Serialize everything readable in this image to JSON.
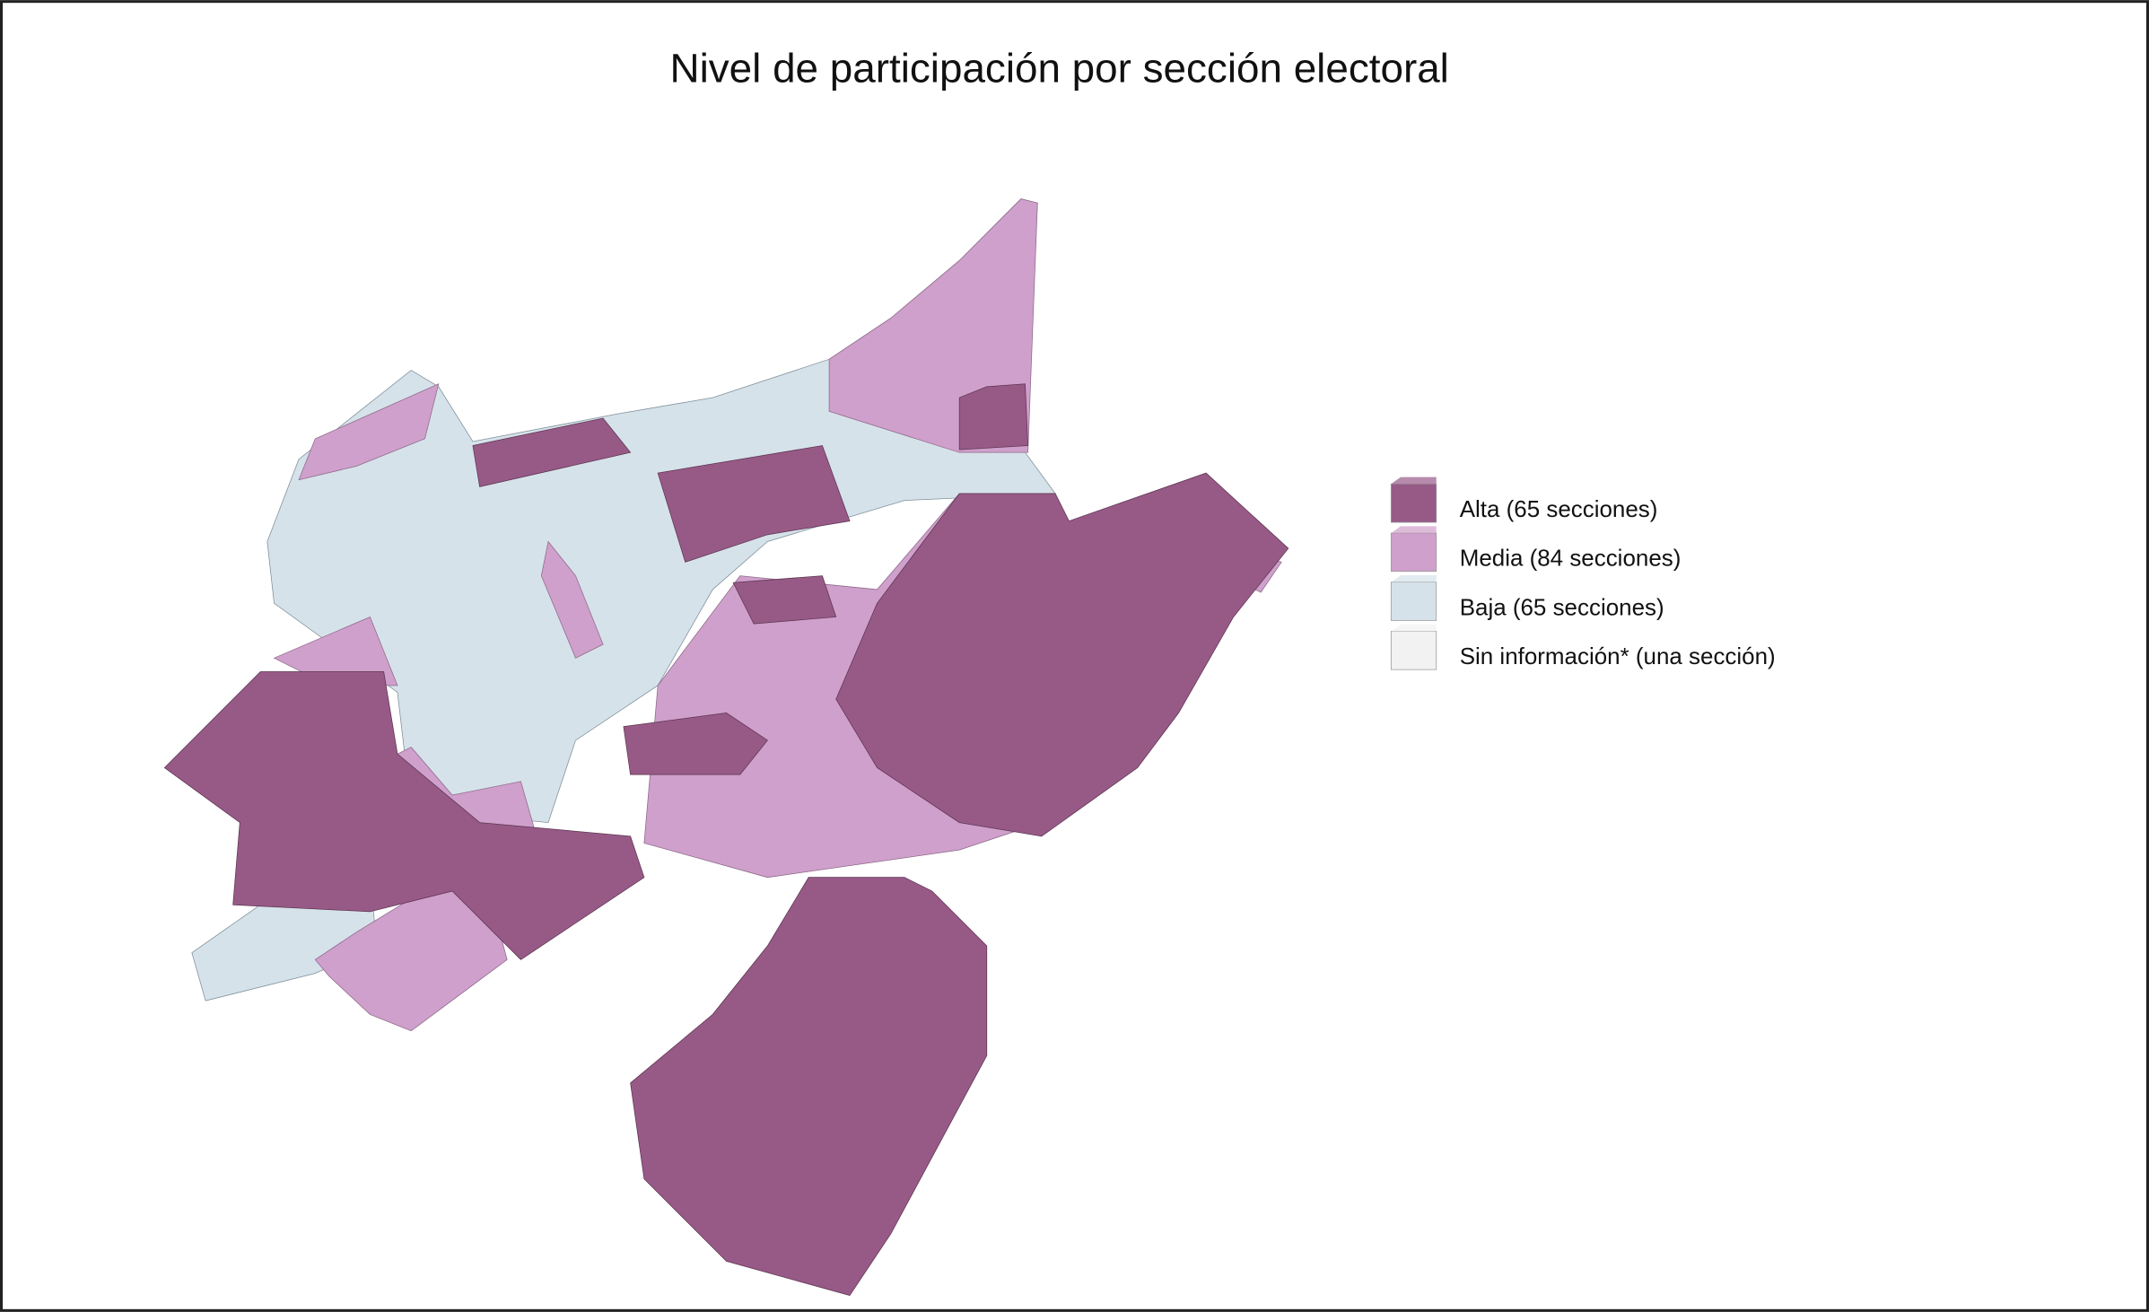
{
  "title": "Nivel de participación por sección electoral",
  "legend": [
    {
      "label": "Alta (65 secciones)",
      "color": "#975a87"
    },
    {
      "label": "Media (84 secciones)",
      "color": "#cfa0cb"
    },
    {
      "label": "Baja (65 secciones)",
      "color": "#d6e2ea"
    },
    {
      "label": "Sin información* (una sección)",
      "color": "#f2f2f2"
    }
  ]
}
